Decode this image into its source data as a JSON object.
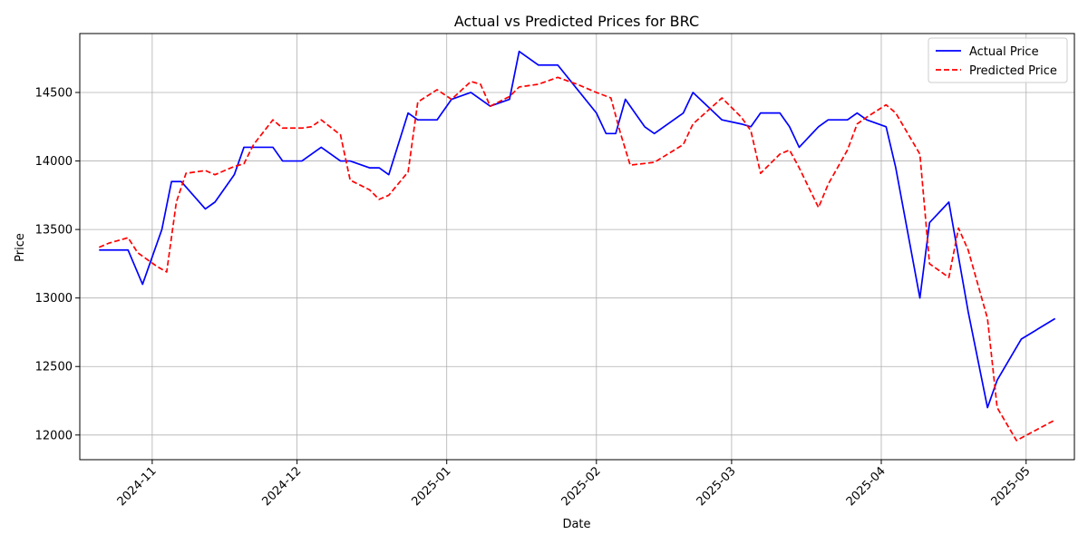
{
  "chart_data": {
    "type": "line",
    "title": "Actual vs Predicted Prices for BRC",
    "xlabel": "Date",
    "ylabel": "Price",
    "xlim": [
      "2024-10-17",
      "2025-05-11"
    ],
    "ylim": [
      11820,
      14930
    ],
    "x_ticks": [
      "2024-11-01",
      "2024-12-01",
      "2025-01-01",
      "2025-02-01",
      "2025-03-01",
      "2025-04-01",
      "2025-05-01"
    ],
    "x_tick_labels": [
      "2024-11",
      "2024-12",
      "2025-01",
      "2025-02",
      "2025-03",
      "2025-04",
      "2025-05"
    ],
    "y_ticks": [
      12000,
      12500,
      13000,
      13500,
      14000,
      14500
    ],
    "y_tick_labels": [
      "12000",
      "12500",
      "13000",
      "13500",
      "14000",
      "14500"
    ],
    "grid": true,
    "legend_position": "top-right",
    "series": [
      {
        "name": "Actual Price",
        "color": "#0000ff",
        "style": "solid",
        "points": [
          [
            "2024-10-21",
            13350
          ],
          [
            "2024-10-24",
            13350
          ],
          [
            "2024-10-27",
            13350
          ],
          [
            "2024-10-30",
            13100
          ],
          [
            "2024-11-03",
            13500
          ],
          [
            "2024-11-05",
            13850
          ],
          [
            "2024-11-07",
            13850
          ],
          [
            "2024-11-12",
            13650
          ],
          [
            "2024-11-14",
            13700
          ],
          [
            "2024-11-18",
            13900
          ],
          [
            "2024-11-20",
            14100
          ],
          [
            "2024-11-26",
            14100
          ],
          [
            "2024-11-28",
            14000
          ],
          [
            "2024-12-02",
            14000
          ],
          [
            "2024-12-06",
            14100
          ],
          [
            "2024-12-10",
            14000
          ],
          [
            "2024-12-12",
            14000
          ],
          [
            "2024-12-16",
            13950
          ],
          [
            "2024-12-18",
            13950
          ],
          [
            "2024-12-20",
            13900
          ],
          [
            "2024-12-24",
            14350
          ],
          [
            "2024-12-26",
            14300
          ],
          [
            "2024-12-30",
            14300
          ],
          [
            "2025-01-02",
            14450
          ],
          [
            "2025-01-06",
            14500
          ],
          [
            "2025-01-10",
            14400
          ],
          [
            "2025-01-14",
            14450
          ],
          [
            "2025-01-16",
            14800
          ],
          [
            "2025-01-20",
            14700
          ],
          [
            "2025-01-24",
            14700
          ],
          [
            "2025-02-01",
            14350
          ],
          [
            "2025-02-03",
            14200
          ],
          [
            "2025-02-05",
            14200
          ],
          [
            "2025-02-07",
            14450
          ],
          [
            "2025-02-11",
            14250
          ],
          [
            "2025-02-13",
            14200
          ],
          [
            "2025-02-19",
            14350
          ],
          [
            "2025-02-21",
            14500
          ],
          [
            "2025-02-27",
            14300
          ],
          [
            "2025-03-03",
            14270
          ],
          [
            "2025-03-05",
            14250
          ],
          [
            "2025-03-07",
            14350
          ],
          [
            "2025-03-11",
            14350
          ],
          [
            "2025-03-13",
            14250
          ],
          [
            "2025-03-15",
            14100
          ],
          [
            "2025-03-19",
            14250
          ],
          [
            "2025-03-21",
            14300
          ],
          [
            "2025-03-25",
            14300
          ],
          [
            "2025-03-27",
            14350
          ],
          [
            "2025-03-29",
            14300
          ],
          [
            "2025-04-02",
            14250
          ],
          [
            "2025-04-04",
            13950
          ],
          [
            "2025-04-09",
            13000
          ],
          [
            "2025-04-11",
            13550
          ],
          [
            "2025-04-15",
            13700
          ],
          [
            "2025-04-19",
            12900
          ],
          [
            "2025-04-23",
            12200
          ],
          [
            "2025-04-25",
            12400
          ],
          [
            "2025-04-30",
            12700
          ],
          [
            "2025-05-07",
            12850
          ]
        ]
      },
      {
        "name": "Predicted Price",
        "color": "#ff0000",
        "style": "dashed",
        "points": [
          [
            "2024-10-21",
            13370
          ],
          [
            "2024-10-23",
            13400
          ],
          [
            "2024-10-27",
            13440
          ],
          [
            "2024-10-29",
            13330
          ],
          [
            "2024-11-02",
            13230
          ],
          [
            "2024-11-04",
            13190
          ],
          [
            "2024-11-06",
            13700
          ],
          [
            "2024-11-08",
            13910
          ],
          [
            "2024-11-12",
            13930
          ],
          [
            "2024-11-14",
            13900
          ],
          [
            "2024-11-18",
            13960
          ],
          [
            "2024-11-20",
            13980
          ],
          [
            "2024-11-22",
            14120
          ],
          [
            "2024-11-26",
            14300
          ],
          [
            "2024-11-28",
            14240
          ],
          [
            "2024-12-02",
            14240
          ],
          [
            "2024-12-04",
            14250
          ],
          [
            "2024-12-06",
            14300
          ],
          [
            "2024-12-10",
            14190
          ],
          [
            "2024-12-12",
            13860
          ],
          [
            "2024-12-16",
            13790
          ],
          [
            "2024-12-18",
            13720
          ],
          [
            "2024-12-20",
            13750
          ],
          [
            "2024-12-24",
            13920
          ],
          [
            "2024-12-26",
            14430
          ],
          [
            "2024-12-30",
            14520
          ],
          [
            "2025-01-02",
            14450
          ],
          [
            "2025-01-06",
            14580
          ],
          [
            "2025-01-08",
            14560
          ],
          [
            "2025-01-10",
            14400
          ],
          [
            "2025-01-14",
            14470
          ],
          [
            "2025-01-16",
            14540
          ],
          [
            "2025-01-20",
            14560
          ],
          [
            "2025-01-24",
            14610
          ],
          [
            "2025-01-28",
            14560
          ],
          [
            "2025-02-01",
            14500
          ],
          [
            "2025-02-04",
            14460
          ],
          [
            "2025-02-06",
            14200
          ],
          [
            "2025-02-08",
            13970
          ],
          [
            "2025-02-13",
            13990
          ],
          [
            "2025-02-19",
            14120
          ],
          [
            "2025-02-21",
            14270
          ],
          [
            "2025-02-27",
            14460
          ],
          [
            "2025-03-03",
            14320
          ],
          [
            "2025-03-05",
            14220
          ],
          [
            "2025-03-07",
            13910
          ],
          [
            "2025-03-11",
            14050
          ],
          [
            "2025-03-13",
            14080
          ],
          [
            "2025-03-15",
            13950
          ],
          [
            "2025-03-19",
            13660
          ],
          [
            "2025-03-21",
            13830
          ],
          [
            "2025-03-25",
            14080
          ],
          [
            "2025-03-27",
            14270
          ],
          [
            "2025-03-29",
            14320
          ],
          [
            "2025-04-02",
            14410
          ],
          [
            "2025-04-04",
            14350
          ],
          [
            "2025-04-09",
            14050
          ],
          [
            "2025-04-11",
            13250
          ],
          [
            "2025-04-15",
            13150
          ],
          [
            "2025-04-17",
            13510
          ],
          [
            "2025-04-19",
            13350
          ],
          [
            "2025-04-23",
            12850
          ],
          [
            "2025-04-25",
            12200
          ],
          [
            "2025-04-29",
            11960
          ],
          [
            "2025-05-07",
            12110
          ]
        ]
      }
    ]
  }
}
